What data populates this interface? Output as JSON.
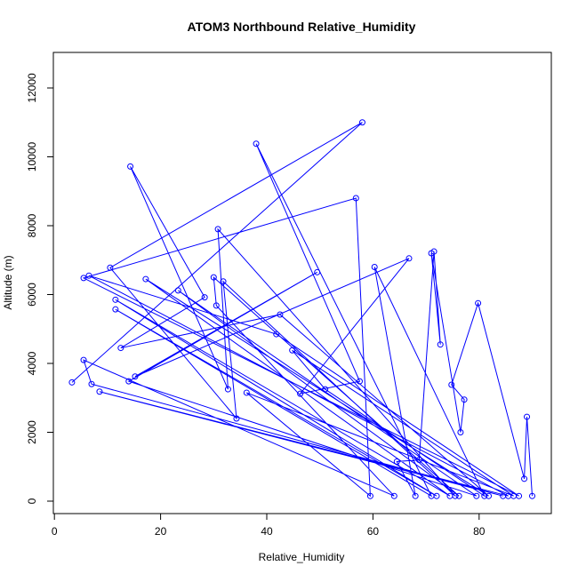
{
  "chart_data": {
    "type": "line",
    "title": "ATOM3 Northbound Relative_Humidity",
    "x_label": "Relative_Humidity",
    "y_label": "Altitude (m)",
    "color": "#0000ff",
    "x": [
      3.3,
      58,
      10.5,
      34.3,
      31.8,
      75.5,
      30.8,
      32.7,
      14.3,
      28.3,
      12.5,
      42.5,
      81.8,
      17.2,
      74.5,
      11.5,
      72,
      11.5,
      71,
      38,
      57.5,
      46.3,
      66.8,
      15.2,
      49.5,
      14,
      79.5,
      23.3,
      76.2,
      30,
      30.5,
      64,
      5.5,
      7,
      84.5,
      8.5,
      85.5,
      6.5,
      41.8,
      87.5,
      5.5,
      56.8,
      59.5,
      36.2,
      86.5,
      44.8,
      51,
      81,
      60.3,
      68,
      64.5,
      68.7,
      71.5,
      72.7,
      71,
      76.5,
      77.2,
      74.8,
      79.8,
      88.5,
      89,
      90
    ],
    "values": [
      3450,
      11000,
      6780,
      2400,
      6380,
      150,
      7900,
      3250,
      9720,
      5920,
      4450,
      5420,
      150,
      6450,
      150,
      5850,
      150,
      5570,
      150,
      10380,
      3480,
      3120,
      7050,
      3620,
      6650,
      3480,
      150,
      6120,
      150,
      6500,
      5680,
      150,
      4100,
      3400,
      150,
      3180,
      150,
      6550,
      4850,
      150,
      6480,
      8800,
      150,
      3150,
      150,
      4380,
      3250,
      150,
      6800,
      150,
      1150,
      1200,
      7250,
      4550,
      7200,
      2000,
      2950,
      3380,
      5750,
      650,
      2450,
      150
    ],
    "xlim": [
      -0.2,
      93.6
    ],
    "ylim": [
      -361,
      13032
    ],
    "xticks": [
      0,
      20,
      40,
      60,
      80
    ],
    "yticks": [
      0,
      2000,
      4000,
      6000,
      8000,
      10000,
      12000
    ]
  }
}
